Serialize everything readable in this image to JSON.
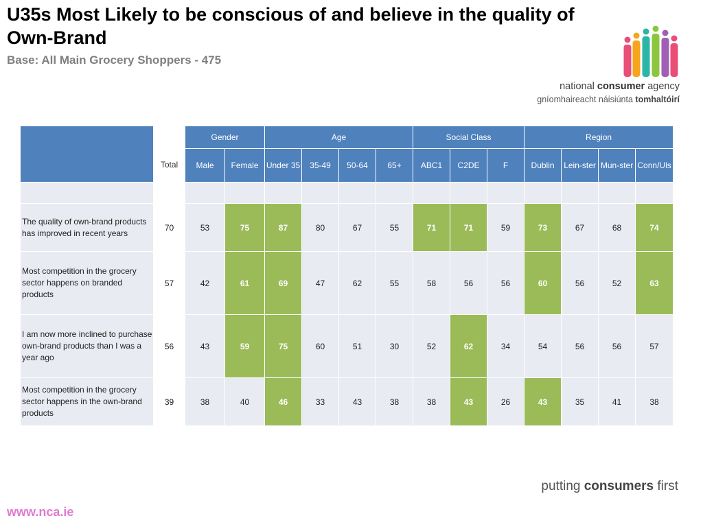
{
  "header": {
    "title": "U35s Most Likely to be conscious of and believe in the quality of Own-Brand",
    "subtitle": "Base: All Main Grocery Shoppers - 475"
  },
  "logo": {
    "line1_a": "national ",
    "line1_b": "consumer",
    "line1_c": " agency",
    "line2_a": "gníomhaireacht náisiúnta ",
    "line2_b": "tomhaltóirí",
    "figure_colors": [
      "#e94e77",
      "#f7a51c",
      "#2bb5a6",
      "#8cc63f",
      "#a05eb5",
      "#e94e77"
    ]
  },
  "footer": {
    "tagline_a": "putting ",
    "tagline_b": "consumers",
    "tagline_c": " first",
    "website": "www.nca.ie"
  },
  "colors": {
    "header_blue": "#4f81bd",
    "highlight_green": "#9bbb59",
    "cell_bg": "#e9ebf2"
  },
  "chart_data": {
    "type": "table",
    "title": "U35s Most Likely to be conscious of and believe in the quality of Own-Brand",
    "groups": [
      {
        "label": "Gender",
        "span": 2
      },
      {
        "label": "Age",
        "span": 4
      },
      {
        "label": "Social Class",
        "span": 3
      },
      {
        "label": "Region",
        "span": 4
      }
    ],
    "total_label": "Total",
    "columns": [
      "Male",
      "Female",
      "Under 35",
      "35-49",
      "50-64",
      "65+",
      "ABC1",
      "C2DE",
      "F",
      "Dublin",
      "Lein-ster",
      "Mun-ster",
      "Conn/Uls"
    ],
    "rows": [
      {
        "label": "The quality of own-brand products has improved in recent years",
        "total": 70,
        "values": [
          53,
          75,
          87,
          80,
          67,
          55,
          71,
          71,
          59,
          73,
          67,
          68,
          74
        ],
        "highlight": [
          false,
          true,
          true,
          false,
          false,
          false,
          true,
          true,
          false,
          true,
          false,
          false,
          true
        ]
      },
      {
        "label": "Most competition in the grocery sector happens on branded products",
        "total": 57,
        "values": [
          42,
          61,
          69,
          47,
          62,
          55,
          58,
          56,
          56,
          60,
          56,
          52,
          63
        ],
        "highlight": [
          false,
          true,
          true,
          false,
          false,
          false,
          false,
          false,
          false,
          true,
          false,
          false,
          true
        ]
      },
      {
        "label": "I am now more inclined to purchase own-brand products than I was a year ago",
        "total": 56,
        "values": [
          43,
          59,
          75,
          60,
          51,
          30,
          52,
          62,
          34,
          54,
          56,
          56,
          57
        ],
        "highlight": [
          false,
          true,
          true,
          false,
          false,
          false,
          false,
          true,
          false,
          false,
          false,
          false,
          false
        ]
      },
      {
        "label": "Most competition in the grocery sector happens in the own-brand products",
        "total": 39,
        "values": [
          38,
          40,
          46,
          33,
          43,
          38,
          38,
          43,
          26,
          43,
          35,
          41,
          38
        ],
        "highlight": [
          false,
          false,
          true,
          false,
          false,
          false,
          false,
          true,
          false,
          true,
          false,
          false,
          false
        ]
      }
    ]
  }
}
